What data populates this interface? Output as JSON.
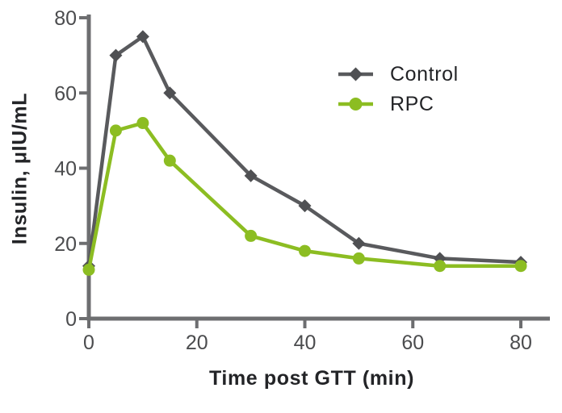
{
  "chart_data": {
    "type": "line",
    "title": "",
    "xlabel": "Time post GTT (min)",
    "ylabel": "Insulin, μIU/mL",
    "x": [
      0,
      5,
      10,
      15,
      30,
      40,
      50,
      65,
      80
    ],
    "series": [
      {
        "name": "Control",
        "marker": "diamond",
        "line_color": "#595a5d",
        "marker_color": "#4f5053",
        "values": [
          14,
          70,
          75,
          60,
          38,
          30,
          20,
          16,
          15
        ]
      },
      {
        "name": "RPC",
        "marker": "circle",
        "line_color": "#8cbd22",
        "marker_color": "#8cbd22",
        "values": [
          13,
          50,
          52,
          42,
          22,
          18,
          16,
          14,
          14
        ]
      }
    ],
    "xticks": [
      0,
      20,
      40,
      60,
      80
    ],
    "yticks": [
      0,
      20,
      40,
      60,
      80
    ],
    "xlim": [
      0,
      85
    ],
    "ylim": [
      0,
      80
    ],
    "grid": false,
    "legend_position": "upper-right"
  },
  "style": {
    "background": "#ffffff",
    "axis_color": "#6d6e70",
    "tick_label_color": "#4b4c4e",
    "text_color": "#232427"
  }
}
